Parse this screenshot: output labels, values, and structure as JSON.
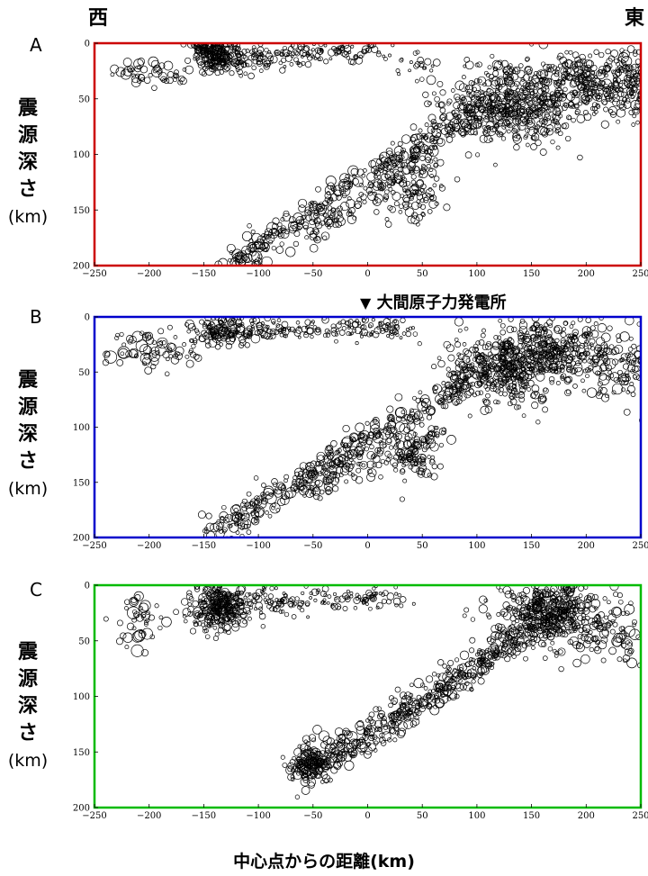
{
  "direction_west": "西",
  "direction_east": "東",
  "y_label_lines": [
    "震",
    "源",
    "深",
    "さ"
  ],
  "y_label_unit": "(km)",
  "x_label": "中心点からの距離(km)",
  "marker": {
    "label": "大間原子力発電所",
    "x": 0
  },
  "chart_data": [
    {
      "id": "A",
      "type": "scatter",
      "title": "A",
      "frame_color": "#cc0000",
      "xlim": [
        -250,
        250
      ],
      "ylim": [
        200,
        0
      ],
      "xticks": [
        -250,
        -200,
        -150,
        -100,
        -50,
        0,
        50,
        100,
        150,
        200,
        250
      ],
      "yticks": [
        0,
        50,
        100,
        150,
        200
      ],
      "clusters": [
        {
          "x": -140,
          "y": 10,
          "dx": 10,
          "dy": 8,
          "n": 170,
          "r": [
            2,
            5
          ]
        },
        {
          "x": -120,
          "y": 12,
          "dx": 18,
          "dy": 7,
          "n": 90,
          "r": [
            2,
            5
          ]
        },
        {
          "x": -80,
          "y": 12,
          "dx": 25,
          "dy": 5,
          "n": 60,
          "r": [
            1.5,
            4
          ]
        },
        {
          "x": -20,
          "y": 8,
          "dx": 30,
          "dy": 4,
          "n": 70,
          "r": [
            1.5,
            4
          ]
        },
        {
          "x": -210,
          "y": 28,
          "dx": 12,
          "dy": 5,
          "n": 30,
          "r": [
            2,
            6
          ]
        },
        {
          "x": -180,
          "y": 30,
          "dx": 10,
          "dy": 5,
          "n": 20,
          "r": [
            2,
            5
          ]
        },
        {
          "x": 40,
          "y": 18,
          "dx": 15,
          "dy": 5,
          "n": 20,
          "r": [
            1.5,
            4
          ]
        },
        {
          "x": 130,
          "y": 55,
          "dx": 30,
          "dy": 18,
          "n": 500,
          "r": [
            2,
            5
          ]
        },
        {
          "x": 200,
          "y": 35,
          "dx": 30,
          "dy": 14,
          "n": 300,
          "r": [
            2,
            5
          ]
        },
        {
          "x": 240,
          "y": 30,
          "dx": 10,
          "dy": 15,
          "n": 80,
          "r": [
            2,
            6
          ]
        },
        {
          "x": 45,
          "y": 135,
          "dx": 12,
          "dy": 15,
          "n": 90,
          "r": [
            2,
            5
          ]
        }
      ],
      "bands": [
        {
          "x0": -130,
          "y0": 200,
          "x1": 100,
          "y1": 60,
          "spread": 7,
          "n": 350,
          "r": [
            2,
            6
          ]
        },
        {
          "x0": -50,
          "y0": 175,
          "x1": 60,
          "y1": 95,
          "spread": 6,
          "n": 110,
          "r": [
            2,
            5
          ]
        }
      ],
      "seed": 11
    },
    {
      "id": "B",
      "type": "scatter",
      "title": "B",
      "frame_color": "#0000cc",
      "xlim": [
        -250,
        250
      ],
      "ylim": [
        200,
        0
      ],
      "xticks": [
        -250,
        -200,
        -150,
        -100,
        -50,
        0,
        50,
        100,
        150,
        200,
        250
      ],
      "yticks": [
        0,
        50,
        100,
        150,
        200
      ],
      "clusters": [
        {
          "x": -130,
          "y": 12,
          "dx": 15,
          "dy": 6,
          "n": 120,
          "r": [
            2,
            5
          ]
        },
        {
          "x": -90,
          "y": 12,
          "dx": 25,
          "dy": 5,
          "n": 80,
          "r": [
            1.5,
            4
          ]
        },
        {
          "x": 0,
          "y": 10,
          "dx": 25,
          "dy": 5,
          "n": 90,
          "r": [
            1.5,
            4
          ]
        },
        {
          "x": -210,
          "y": 28,
          "dx": 15,
          "dy": 10,
          "n": 50,
          "r": [
            2,
            7
          ]
        },
        {
          "x": -170,
          "y": 30,
          "dx": 10,
          "dy": 8,
          "n": 25,
          "r": [
            2,
            5
          ]
        },
        {
          "x": 120,
          "y": 50,
          "dx": 25,
          "dy": 15,
          "n": 350,
          "r": [
            2,
            5
          ]
        },
        {
          "x": 165,
          "y": 30,
          "dx": 30,
          "dy": 13,
          "n": 380,
          "r": [
            2,
            5
          ]
        },
        {
          "x": 230,
          "y": 45,
          "dx": 18,
          "dy": 15,
          "n": 90,
          "r": [
            2,
            6
          ]
        },
        {
          "x": 45,
          "y": 125,
          "dx": 10,
          "dy": 12,
          "n": 80,
          "r": [
            2,
            5
          ]
        }
      ],
      "bands": [
        {
          "x0": -140,
          "y0": 195,
          "x1": 90,
          "y1": 60,
          "spread": 7,
          "n": 380,
          "r": [
            2,
            6
          ]
        },
        {
          "x0": -60,
          "y0": 160,
          "x1": 70,
          "y1": 105,
          "spread": 6,
          "n": 110,
          "r": [
            2,
            5
          ]
        }
      ],
      "seed": 23
    },
    {
      "id": "C",
      "type": "scatter",
      "title": "C",
      "frame_color": "#00bb00",
      "xlim": [
        -250,
        250
      ],
      "ylim": [
        200,
        0
      ],
      "xticks": [
        -250,
        -200,
        -150,
        -100,
        -50,
        0,
        50,
        100,
        150,
        200,
        250
      ],
      "yticks": [
        0,
        50,
        100,
        150,
        200
      ],
      "clusters": [
        {
          "x": -135,
          "y": 20,
          "dx": 13,
          "dy": 10,
          "n": 280,
          "r": [
            2,
            5
          ]
        },
        {
          "x": -85,
          "y": 15,
          "dx": 20,
          "dy": 6,
          "n": 80,
          "r": [
            1.5,
            4
          ]
        },
        {
          "x": -10,
          "y": 12,
          "dx": 25,
          "dy": 5,
          "n": 80,
          "r": [
            1.5,
            4
          ]
        },
        {
          "x": -210,
          "y": 28,
          "dx": 12,
          "dy": 12,
          "n": 45,
          "r": [
            2,
            7
          ]
        },
        {
          "x": 170,
          "y": 25,
          "dx": 25,
          "dy": 15,
          "n": 450,
          "r": [
            2,
            5
          ]
        },
        {
          "x": 230,
          "y": 45,
          "dx": 15,
          "dy": 15,
          "n": 50,
          "r": [
            2,
            6
          ]
        },
        {
          "x": -55,
          "y": 160,
          "dx": 10,
          "dy": 9,
          "n": 140,
          "r": [
            2,
            5
          ]
        }
      ],
      "bands": [
        {
          "x0": -60,
          "y0": 170,
          "x1": 170,
          "y1": 25,
          "spread": 7,
          "n": 380,
          "r": [
            2,
            6
          ]
        },
        {
          "x0": -20,
          "y0": 150,
          "x1": 130,
          "y1": 55,
          "spread": 6,
          "n": 140,
          "r": [
            2,
            5
          ]
        }
      ],
      "seed": 37
    }
  ]
}
